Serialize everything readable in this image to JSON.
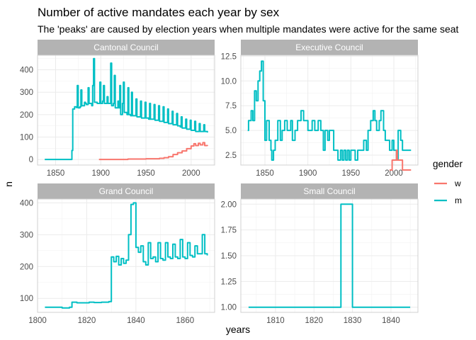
{
  "title": "Number of active mandates each year by sex",
  "subtitle": "The 'peaks' are caused by election years when multiple mandates were active for the same seat",
  "x_axis_title": "years",
  "y_axis_title": "n",
  "legend": {
    "title": "gender",
    "items": [
      {
        "label": "w",
        "color": "#F8766D"
      },
      {
        "label": "m",
        "color": "#00BFC4"
      }
    ]
  },
  "colors": {
    "strip": "#B3B3B3",
    "w": "#F8766D",
    "m": "#00BFC4"
  },
  "chart_data": [
    {
      "type": "line",
      "panel": "Cantonal Council",
      "xlim": [
        1830,
        2026
      ],
      "ylim": [
        -25,
        465
      ],
      "x_ticks": [
        1850,
        1900,
        1950,
        2000
      ],
      "y_ticks": [
        0,
        100,
        200,
        300,
        400
      ],
      "series": [
        {
          "name": "m",
          "points": [
            [
              1838,
              0
            ],
            [
              1860,
              0
            ],
            [
              1867,
              0
            ],
            [
              1868,
              40
            ],
            [
              1869,
              225
            ],
            [
              1871,
              235
            ],
            [
              1873,
              232
            ],
            [
              1874,
              330
            ],
            [
              1875,
              230
            ],
            [
              1877,
              235
            ],
            [
              1878,
              310
            ],
            [
              1879,
              240
            ],
            [
              1882,
              255
            ],
            [
              1883,
              250
            ],
            [
              1884,
              245
            ],
            [
              1886,
              320
            ],
            [
              1887,
              250
            ],
            [
              1890,
              240
            ],
            [
              1891,
              330
            ],
            [
              1892,
              450
            ],
            [
              1893,
              255
            ],
            [
              1896,
              250
            ],
            [
              1898,
              250
            ],
            [
              1899,
              345
            ],
            [
              1900,
              250
            ],
            [
              1902,
              260
            ],
            [
              1903,
              330
            ],
            [
              1904,
              250
            ],
            [
              1907,
              280
            ],
            [
              1908,
              250
            ],
            [
              1910,
              250
            ],
            [
              1911,
              430
            ],
            [
              1912,
              240
            ],
            [
              1914,
              250
            ],
            [
              1915,
              375
            ],
            [
              1916,
              230
            ],
            [
              1919,
              260
            ],
            [
              1920,
              230
            ],
            [
              1921,
              330
            ],
            [
              1922,
              200
            ],
            [
              1924,
              250
            ],
            [
              1925,
              345
            ],
            [
              1926,
              210
            ],
            [
              1929,
              200
            ],
            [
              1930,
              320
            ],
            [
              1931,
              200
            ],
            [
              1933,
              195
            ],
            [
              1934,
              300
            ],
            [
              1935,
              195
            ],
            [
              1938,
              195
            ],
            [
              1939,
              270
            ],
            [
              1940,
              190
            ],
            [
              1943,
              190
            ],
            [
              1944,
              260
            ],
            [
              1945,
              185
            ],
            [
              1948,
              185
            ],
            [
              1949,
              255
            ],
            [
              1950,
              185
            ],
            [
              1953,
              180
            ],
            [
              1954,
              250
            ],
            [
              1955,
              180
            ],
            [
              1958,
              180
            ],
            [
              1959,
              245
            ],
            [
              1960,
              175
            ],
            [
              1963,
              175
            ],
            [
              1964,
              240
            ],
            [
              1965,
              170
            ],
            [
              1968,
              170
            ],
            [
              1969,
              235
            ],
            [
              1970,
              165
            ],
            [
              1973,
              165
            ],
            [
              1974,
              225
            ],
            [
              1975,
              160
            ],
            [
              1978,
              160
            ],
            [
              1979,
              215
            ],
            [
              1980,
              155
            ],
            [
              1983,
              155
            ],
            [
              1984,
              205
            ],
            [
              1985,
              150
            ],
            [
              1988,
              145
            ],
            [
              1989,
              190
            ],
            [
              1990,
              140
            ],
            [
              1993,
              140
            ],
            [
              1994,
              180
            ],
            [
              1995,
              135
            ],
            [
              1998,
              135
            ],
            [
              1999,
              175
            ],
            [
              2000,
              130
            ],
            [
              2003,
              130
            ],
            [
              2004,
              170
            ],
            [
              2005,
              125
            ],
            [
              2008,
              125
            ],
            [
              2009,
              160
            ],
            [
              2010,
              125
            ],
            [
              2013,
              125
            ],
            [
              2014,
              155
            ],
            [
              2015,
              125
            ],
            [
              2018,
              120
            ]
          ]
        },
        {
          "name": "w",
          "points": [
            [
              1898,
              0
            ],
            [
              1930,
              2
            ],
            [
              1950,
              3
            ],
            [
              1965,
              5
            ],
            [
              1970,
              8
            ],
            [
              1975,
              12
            ],
            [
              1980,
              22
            ],
            [
              1985,
              30
            ],
            [
              1990,
              38
            ],
            [
              1995,
              48
            ],
            [
              2000,
              60
            ],
            [
              2003,
              70
            ],
            [
              2005,
              62
            ],
            [
              2008,
              72
            ],
            [
              2010,
              65
            ],
            [
              2013,
              75
            ],
            [
              2015,
              62
            ],
            [
              2018,
              60
            ]
          ]
        }
      ]
    },
    {
      "type": "line",
      "panel": "Executive Council",
      "xlim": [
        1822,
        2028
      ],
      "ylim": [
        1.5,
        12.6
      ],
      "x_ticks": [
        1850,
        1900,
        1950,
        2000
      ],
      "y_ticks": [
        2.5,
        5.0,
        7.5,
        10.0,
        12.5
      ],
      "series": [
        {
          "name": "m",
          "points": [
            [
              1830,
              5
            ],
            [
              1831,
              6
            ],
            [
              1834,
              7
            ],
            [
              1836,
              6
            ],
            [
              1838,
              9
            ],
            [
              1840,
              8
            ],
            [
              1842,
              10
            ],
            [
              1844,
              11
            ],
            [
              1846,
              12
            ],
            [
              1848,
              8
            ],
            [
              1850,
              4
            ],
            [
              1852,
              6
            ],
            [
              1855,
              4
            ],
            [
              1857,
              3
            ],
            [
              1858,
              2
            ],
            [
              1860,
              3
            ],
            [
              1862,
              4
            ],
            [
              1865,
              6
            ],
            [
              1868,
              4
            ],
            [
              1870,
              5
            ],
            [
              1873,
              6
            ],
            [
              1876,
              5
            ],
            [
              1880,
              6
            ],
            [
              1882,
              4
            ],
            [
              1885,
              5
            ],
            [
              1888,
              6
            ],
            [
              1892,
              7
            ],
            [
              1895,
              6
            ],
            [
              1900,
              5
            ],
            [
              1905,
              6
            ],
            [
              1908,
              5
            ],
            [
              1912,
              6
            ],
            [
              1915,
              5
            ],
            [
              1918,
              3
            ],
            [
              1920,
              5
            ],
            [
              1923,
              4
            ],
            [
              1925,
              5
            ],
            [
              1930,
              3
            ],
            [
              1935,
              2
            ],
            [
              1938,
              3
            ],
            [
              1940,
              2
            ],
            [
              1942,
              3
            ],
            [
              1944,
              2
            ],
            [
              1946,
              3
            ],
            [
              1948,
              2
            ],
            [
              1950,
              3
            ],
            [
              1955,
              2
            ],
            [
              1958,
              3
            ],
            [
              1962,
              3
            ],
            [
              1965,
              4
            ],
            [
              1968,
              3
            ],
            [
              1970,
              5
            ],
            [
              1973,
              6
            ],
            [
              1976,
              7
            ],
            [
              1978,
              6
            ],
            [
              1980,
              5
            ],
            [
              1983,
              6
            ],
            [
              1985,
              7
            ],
            [
              1988,
              5
            ],
            [
              1990,
              4
            ],
            [
              1995,
              3
            ],
            [
              1998,
              4
            ],
            [
              2000,
              3
            ],
            [
              2003,
              2
            ],
            [
              2005,
              5
            ],
            [
              2008,
              4
            ],
            [
              2010,
              3
            ],
            [
              2020,
              3
            ]
          ]
        },
        {
          "name": "w",
          "points": [
            [
              1995,
              1
            ],
            [
              1998,
              2
            ],
            [
              2001,
              2
            ],
            [
              2003,
              3
            ],
            [
              2004,
              2
            ],
            [
              2008,
              2
            ],
            [
              2010,
              1
            ],
            [
              2020,
              1
            ]
          ]
        }
      ]
    },
    {
      "type": "line",
      "panel": "Grand Council",
      "xlim": [
        1800,
        1872
      ],
      "ylim": [
        56,
        412
      ],
      "x_ticks": [
        1800,
        1820,
        1840,
        1860
      ],
      "y_ticks": [
        100,
        200,
        300,
        400
      ],
      "series": [
        {
          "name": "m",
          "points": [
            [
              1803,
              72
            ],
            [
              1808,
              72
            ],
            [
              1810,
              70
            ],
            [
              1813,
              72
            ],
            [
              1814,
              88
            ],
            [
              1816,
              86
            ],
            [
              1819,
              86
            ],
            [
              1821,
              88
            ],
            [
              1823,
              87
            ],
            [
              1826,
              88
            ],
            [
              1829,
              90
            ],
            [
              1830,
              230
            ],
            [
              1831,
              215
            ],
            [
              1832,
              232
            ],
            [
              1833,
              205
            ],
            [
              1834,
              225
            ],
            [
              1835,
              210
            ],
            [
              1836,
              220
            ],
            [
              1837,
              300
            ],
            [
              1838,
              395
            ],
            [
              1839,
              400
            ],
            [
              1840,
              260
            ],
            [
              1841,
              245
            ],
            [
              1842,
              265
            ],
            [
              1843,
              215
            ],
            [
              1844,
              205
            ],
            [
              1845,
              275
            ],
            [
              1846,
              225
            ],
            [
              1847,
              230
            ],
            [
              1848,
              215
            ],
            [
              1849,
              275
            ],
            [
              1850,
              225
            ],
            [
              1851,
              220
            ],
            [
              1852,
              275
            ],
            [
              1853,
              230
            ],
            [
              1854,
              225
            ],
            [
              1855,
              270
            ],
            [
              1856,
              230
            ],
            [
              1857,
              225
            ],
            [
              1858,
              285
            ],
            [
              1859,
              230
            ],
            [
              1860,
              225
            ],
            [
              1861,
              275
            ],
            [
              1862,
              235
            ],
            [
              1863,
              230
            ],
            [
              1864,
              265
            ],
            [
              1865,
              240
            ],
            [
              1866,
              240
            ],
            [
              1867,
              300
            ],
            [
              1868,
              240
            ],
            [
              1869,
              235
            ]
          ]
        }
      ]
    },
    {
      "type": "line",
      "panel": "Small Council",
      "xlim": [
        1801,
        1847
      ],
      "ylim": [
        0.95,
        2.05
      ],
      "x_ticks": [
        1810,
        1820,
        1830,
        1840
      ],
      "y_ticks": [
        1.0,
        1.25,
        1.5,
        1.75,
        2.0
      ],
      "series": [
        {
          "name": "m",
          "points": [
            [
              1803,
              1
            ],
            [
              1826,
              1
            ],
            [
              1827,
              2
            ],
            [
              1829,
              2
            ],
            [
              1830,
              1
            ],
            [
              1845,
              1
            ]
          ]
        }
      ]
    }
  ]
}
